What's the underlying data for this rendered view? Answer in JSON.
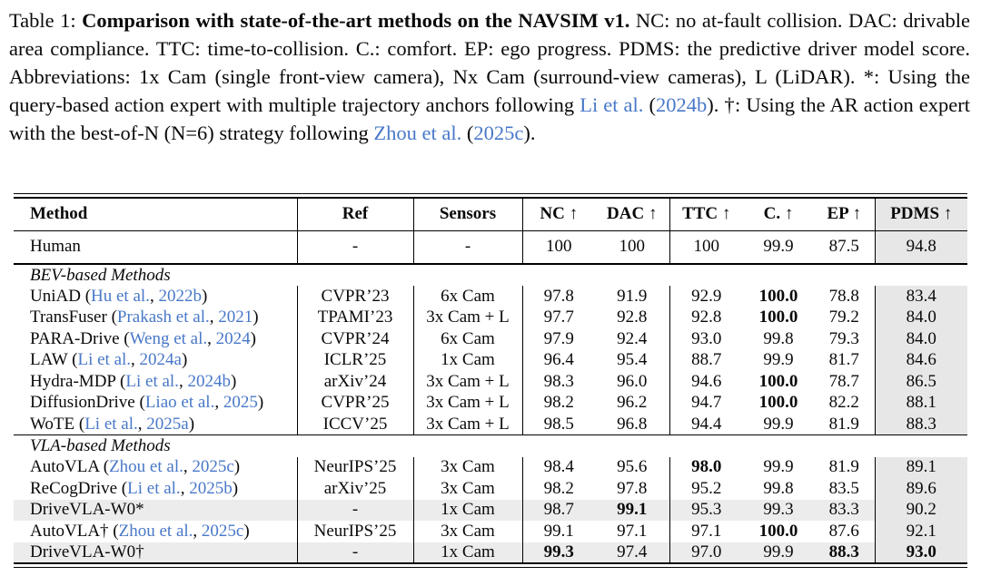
{
  "colors": {
    "link_blue": "#4878c8",
    "pdms_shade": "#e7e7e7",
    "row_highlight": "#ececec"
  },
  "caption": {
    "segments": [
      {
        "text": "Table 1: "
      },
      {
        "text": "Comparison with state-of-the-art methods on the NAVSIM v1."
      },
      {
        "text": " NC: no at-fault collision. DAC: drivable area compliance. TTC: time-to-collision. C.: comfort. EP: ego progress. PDMS: the predictive driver model score. Abbreviations: 1x Cam (single front-view camera), Nx Cam (surround-view cameras), L (LiDAR). *: Using the query-based action expert with multiple trajectory anchors following "
      },
      {
        "text": "Li et al."
      },
      {
        "text": " ("
      },
      {
        "text": "2024b"
      },
      {
        "text": "). †: Using the AR action expert with the best-of-N (N=6) strategy following "
      },
      {
        "text": "Zhou et al."
      },
      {
        "text": " ("
      },
      {
        "text": "2025c"
      },
      {
        "text": ")."
      }
    ]
  },
  "table": {
    "columns": [
      {
        "label": "Method"
      },
      {
        "label": "Ref"
      },
      {
        "label": "Sensors"
      },
      {
        "label": "NC ↑"
      },
      {
        "label": "DAC ↑"
      },
      {
        "label": "TTC ↑"
      },
      {
        "label": "C. ↑"
      },
      {
        "label": "EP ↑"
      },
      {
        "label": "PDMS ↑"
      }
    ],
    "metric_keys": [
      "nc",
      "dac",
      "ttc",
      "comfort",
      "ep",
      "pdms"
    ],
    "sections": [
      {
        "label": null,
        "divider": "thick",
        "rows": [
          {
            "method": {
              "name": "Human",
              "cite_author": null,
              "cite_year": null
            },
            "ref": "-",
            "sensors": "-",
            "values": [
              "100",
              "100",
              "100",
              "99.9",
              "87.5",
              "94.8"
            ],
            "bold": [
              false,
              false,
              false,
              false,
              false,
              false
            ],
            "highlight": false,
            "tall": true
          }
        ]
      },
      {
        "label": "BEV-based Methods",
        "divider": "thin",
        "rows": [
          {
            "method": {
              "name": "UniAD",
              "cite_author": "Hu et al.",
              "cite_year": "2022b"
            },
            "ref": "CVPR’23",
            "sensors": "6x Cam",
            "values": [
              "97.8",
              "91.9",
              "92.9",
              "100.0",
              "78.8",
              "83.4"
            ],
            "bold": [
              false,
              false,
              false,
              true,
              false,
              false
            ],
            "highlight": false
          },
          {
            "method": {
              "name": "TransFuser",
              "cite_author": "Prakash et al.",
              "cite_year": "2021"
            },
            "ref": "TPAMI’23",
            "sensors": "3x Cam + L",
            "values": [
              "97.7",
              "92.8",
              "92.8",
              "100.0",
              "79.2",
              "84.0"
            ],
            "bold": [
              false,
              false,
              false,
              true,
              false,
              false
            ],
            "highlight": false
          },
          {
            "method": {
              "name": "PARA-Drive",
              "cite_author": "Weng et al.",
              "cite_year": "2024"
            },
            "ref": "CVPR’24",
            "sensors": "6x Cam",
            "values": [
              "97.9",
              "92.4",
              "93.0",
              "99.8",
              "79.3",
              "84.0"
            ],
            "bold": [
              false,
              false,
              false,
              false,
              false,
              false
            ],
            "highlight": false
          },
          {
            "method": {
              "name": "LAW",
              "cite_author": "Li et al.",
              "cite_year": "2024a"
            },
            "ref": "ICLR’25",
            "sensors": "1x Cam",
            "values": [
              "96.4",
              "95.4",
              "88.7",
              "99.9",
              "81.7",
              "84.6"
            ],
            "bold": [
              false,
              false,
              false,
              false,
              false,
              false
            ],
            "highlight": false
          },
          {
            "method": {
              "name": "Hydra-MDP",
              "cite_author": "Li et al.",
              "cite_year": "2024b"
            },
            "ref": "arXiv’24",
            "sensors": "3x Cam + L",
            "values": [
              "98.3",
              "96.0",
              "94.6",
              "100.0",
              "78.7",
              "86.5"
            ],
            "bold": [
              false,
              false,
              false,
              true,
              false,
              false
            ],
            "highlight": false
          },
          {
            "method": {
              "name": "DiffusionDrive",
              "cite_author": "Liao et al.",
              "cite_year": "2025"
            },
            "ref": "CVPR’25",
            "sensors": "3x Cam + L",
            "values": [
              "98.2",
              "96.2",
              "94.7",
              "100.0",
              "82.2",
              "88.1"
            ],
            "bold": [
              false,
              false,
              false,
              true,
              false,
              false
            ],
            "highlight": false
          },
          {
            "method": {
              "name": "WoTE",
              "cite_author": "Li et al.",
              "cite_year": "2025a"
            },
            "ref": "ICCV’25",
            "sensors": "3x Cam + L",
            "values": [
              "98.5",
              "96.8",
              "94.4",
              "99.9",
              "81.9",
              "88.3"
            ],
            "bold": [
              false,
              false,
              false,
              false,
              false,
              false
            ],
            "highlight": false
          }
        ]
      },
      {
        "label": "VLA-based Methods",
        "divider": null,
        "rows": [
          {
            "method": {
              "name": "AutoVLA",
              "cite_author": "Zhou et al.",
              "cite_year": "2025c"
            },
            "ref": "NeurIPS’25",
            "sensors": "3x Cam",
            "values": [
              "98.4",
              "95.6",
              "98.0",
              "99.9",
              "81.9",
              "89.1"
            ],
            "bold": [
              false,
              false,
              true,
              false,
              false,
              false
            ],
            "highlight": false
          },
          {
            "method": {
              "name": "ReCogDrive",
              "cite_author": "Li et al.",
              "cite_year": "2025b"
            },
            "ref": "arXiv’25",
            "sensors": "3x Cam",
            "values": [
              "98.2",
              "97.8",
              "95.2",
              "99.8",
              "83.5",
              "89.6"
            ],
            "bold": [
              false,
              false,
              false,
              false,
              false,
              false
            ],
            "highlight": false
          },
          {
            "method": {
              "name": "DriveVLA-W0*",
              "cite_author": null,
              "cite_year": null
            },
            "ref": "-",
            "sensors": "1x Cam",
            "values": [
              "98.7",
              "99.1",
              "95.3",
              "99.3",
              "83.3",
              "90.2"
            ],
            "bold": [
              false,
              true,
              false,
              false,
              false,
              false
            ],
            "highlight": true
          },
          {
            "method": {
              "name": "AutoVLA†",
              "cite_author": "Zhou et al.",
              "cite_year": "2025c"
            },
            "ref": "NeurIPS’25",
            "sensors": "3x Cam",
            "values": [
              "99.1",
              "97.1",
              "97.1",
              "100.0",
              "87.6",
              "92.1"
            ],
            "bold": [
              false,
              false,
              false,
              true,
              false,
              false
            ],
            "highlight": false
          },
          {
            "method": {
              "name": "DriveVLA-W0†",
              "cite_author": null,
              "cite_year": null
            },
            "ref": "-",
            "sensors": "1x Cam",
            "values": [
              "99.3",
              "97.4",
              "97.0",
              "99.9",
              "88.3",
              "93.0"
            ],
            "bold": [
              true,
              false,
              false,
              false,
              true,
              true
            ],
            "highlight": true
          }
        ]
      }
    ]
  }
}
